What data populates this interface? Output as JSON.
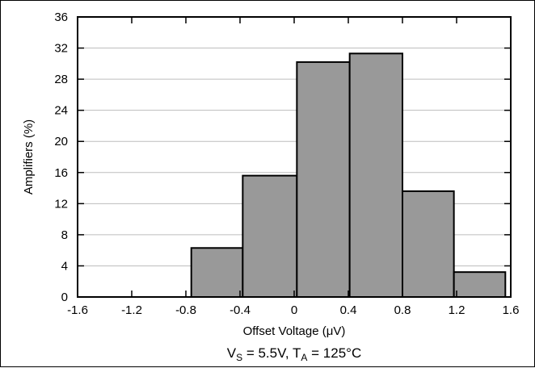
{
  "chart_data": {
    "type": "bar",
    "histogram": true,
    "title": "",
    "xlabel": "Offset Voltage (μV)",
    "ylabel": "Amplifiers (%)",
    "caption": {
      "vs_symbol": "V",
      "vs_sub": "S",
      "vs_value": " = 5.5V, ",
      "ta_symbol": "T",
      "ta_sub": "A",
      "ta_value": " = 125°C"
    },
    "xlim": [
      -1.6,
      1.6
    ],
    "ylim": [
      0,
      36
    ],
    "xticks": [
      -1.6,
      -1.2,
      -0.8,
      -0.4,
      0,
      0.4,
      0.8,
      1.2,
      1.6
    ],
    "xtick_labels": [
      "-1.6",
      "-1.2",
      "-0.8",
      "-0.4",
      "0",
      "0.4",
      "0.8",
      "1.2",
      "1.6"
    ],
    "yticks": [
      0,
      4,
      8,
      12,
      16,
      20,
      24,
      28,
      32,
      36
    ],
    "ytick_labels": [
      "0",
      "4",
      "8",
      "12",
      "16",
      "20",
      "24",
      "28",
      "32",
      "36"
    ],
    "grid": true,
    "bins": [
      {
        "x0": -0.76,
        "x1": -0.38,
        "value": 6.3
      },
      {
        "x0": -0.38,
        "x1": 0.02,
        "value": 15.6
      },
      {
        "x0": 0.02,
        "x1": 0.41,
        "value": 30.2
      },
      {
        "x0": 0.41,
        "x1": 0.8,
        "value": 31.3
      },
      {
        "x0": 0.8,
        "x1": 1.18,
        "value": 13.6
      },
      {
        "x0": 1.18,
        "x1": 1.56,
        "value": 3.2
      }
    ],
    "bar_color": "#999999"
  }
}
